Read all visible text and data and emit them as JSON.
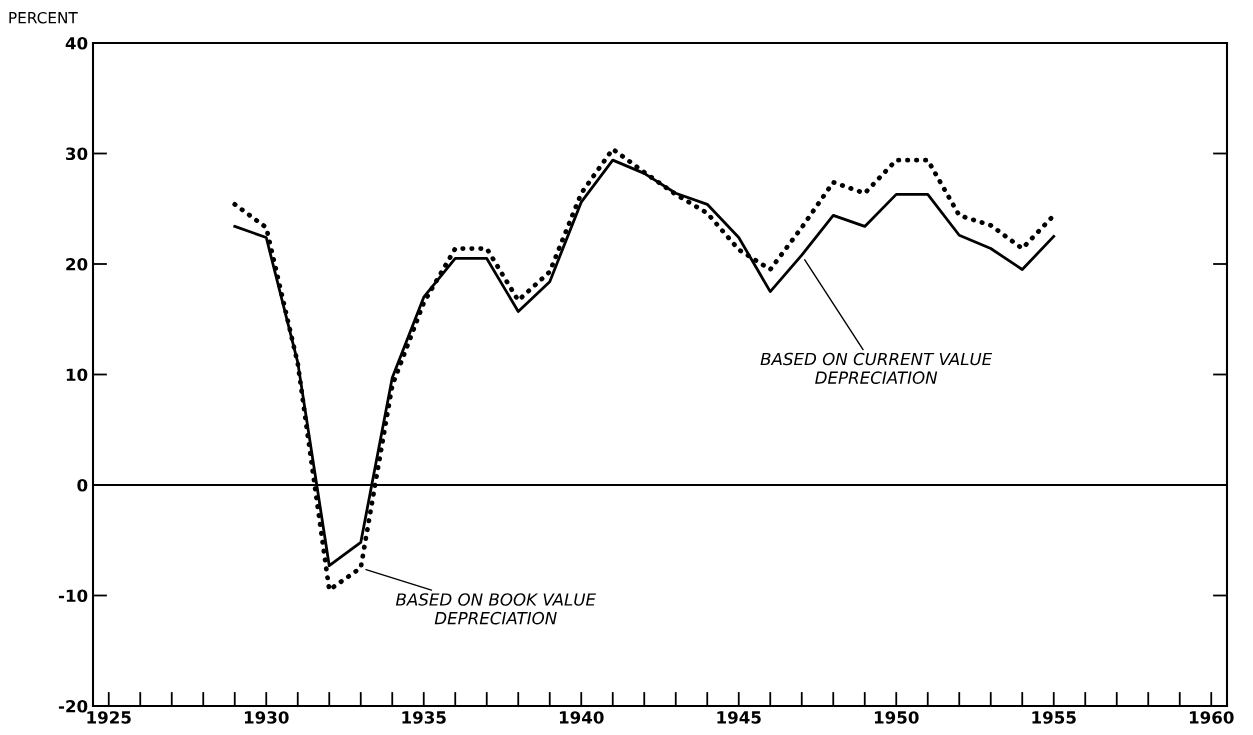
{
  "chart_data": {
    "type": "line",
    "ylabel": "PERCENT",
    "x": [
      1929,
      1930,
      1931,
      1932,
      1933,
      1934,
      1935,
      1936,
      1937,
      1938,
      1939,
      1940,
      1941,
      1942,
      1943,
      1944,
      1945,
      1946,
      1947,
      1948,
      1949,
      1950,
      1951,
      1952,
      1953,
      1954,
      1955
    ],
    "series": [
      {
        "color": "#000000",
        "line_style": "solid",
        "values": [
          23.4,
          22.4,
          11.1,
          -7.3,
          -5.2,
          9.7,
          17.0,
          20.5,
          20.5,
          15.7,
          18.4,
          25.6,
          29.4,
          28.2,
          26.4,
          25.4,
          22.4,
          17.5,
          20.8,
          24.4,
          23.4,
          26.3,
          26.3,
          22.6,
          21.4,
          19.5,
          22.5
        ]
      },
      {
        "color": "#000000",
        "line_style": "dotted",
        "values": [
          25.4,
          23.3,
          11.0,
          -9.5,
          -7.5,
          9.0,
          16.5,
          21.4,
          21.4,
          16.7,
          19.3,
          26.4,
          30.4,
          28.3,
          26.3,
          24.6,
          21.3,
          19.5,
          23.3,
          27.4,
          26.4,
          29.4,
          29.4,
          24.4,
          23.5,
          21.4,
          24.4
        ]
      }
    ],
    "xlim": [
      1924.5,
      1960.5
    ],
    "xticks": [
      1925,
      {
        "value": 1926,
        "label": null
      },
      {
        "value": 1927,
        "label": null
      },
      {
        "value": 1928,
        "label": null
      },
      {
        "value": 1929,
        "label": null
      },
      1930,
      {
        "value": 1931,
        "label": null
      },
      {
        "value": 1932,
        "label": null
      },
      {
        "value": 1933,
        "label": null
      },
      {
        "value": 1934,
        "label": null
      },
      1935,
      {
        "value": 1936,
        "label": null
      },
      {
        "value": 1937,
        "label": null
      },
      {
        "value": 1938,
        "label": null
      },
      {
        "value": 1939,
        "label": null
      },
      1940,
      {
        "value": 1941,
        "label": null
      },
      {
        "value": 1942,
        "label": null
      },
      {
        "value": 1943,
        "label": null
      },
      {
        "value": 1944,
        "label": null
      },
      1945,
      {
        "value": 1946,
        "label": null
      },
      {
        "value": 1947,
        "label": null
      },
      {
        "value": 1948,
        "label": null
      },
      {
        "value": 1949,
        "label": null
      },
      1950,
      {
        "value": 1951,
        "label": null
      },
      {
        "value": 1952,
        "label": null
      },
      {
        "value": 1953,
        "label": null
      },
      {
        "value": 1954,
        "label": null
      },
      1955,
      {
        "value": 1956,
        "label": null
      },
      {
        "value": 1957,
        "label": null
      },
      {
        "value": 1958,
        "label": null
      },
      {
        "value": 1959,
        "label": null
      },
      1960
    ],
    "ylim": [
      -20,
      40
    ],
    "yticks": [
      -20,
      -10,
      0,
      10,
      20,
      30,
      40
    ],
    "ref_lines": [
      {
        "axis": "y",
        "value": 0,
        "color": "#000000"
      }
    ],
    "annotations": [
      {
        "text": "BASED ON BOOK VALUE\nDEPRECIATION",
        "x": 1933,
        "y": -7.5
      },
      {
        "text": "BASED ON CURRENT VALUE\nDEPRECIATION",
        "x": 1947,
        "y": 20.8
      }
    ],
    "grid": false
  }
}
